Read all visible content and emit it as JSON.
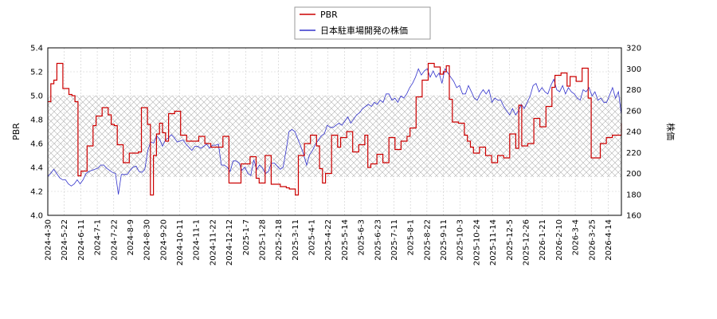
{
  "chart_data": {
    "type": "line",
    "legend": {
      "placement": "top-center",
      "entries": [
        {
          "name": "PBR",
          "color": "#cc0000"
        },
        {
          "name": "日本駐車場開発の株価",
          "color": "#3333cc"
        }
      ]
    },
    "y_left": {
      "label": "PBR",
      "range": [
        4.0,
        5.4
      ],
      "ticks": [
        "4.0",
        "4.2",
        "4.4",
        "4.6",
        "4.8",
        "5.0",
        "5.2",
        "5.4"
      ]
    },
    "y_right": {
      "label": "株価",
      "range": [
        160,
        320
      ],
      "ticks": [
        "160",
        "180",
        "200",
        "220",
        "240",
        "260",
        "280",
        "300",
        "320"
      ]
    },
    "shaded_band_pbr": [
      4.32,
      5.0
    ],
    "grid": true,
    "x_ticks": [
      "2024-4-30",
      "2024-5-22",
      "2024-6-11",
      "2024-7-1",
      "2024-7-22",
      "2024-8-9",
      "2024-8-30",
      "2024-9-20",
      "2024-10-11",
      "2024-11-1",
      "2024-11-22",
      "2024-12-12",
      "2025-1-7",
      "2025-1-28",
      "2025-2-18",
      "2025-3-11",
      "2025-4-1",
      "2025-4-22",
      "2025-5-14",
      "2025-6-3",
      "2025-6-23",
      "2025-7-11",
      "2025-8-1",
      "2025-8-22",
      "2025-9-11",
      "2025-10-3",
      "2025-10-24",
      "2025-11-14",
      "2025-12-5",
      "2025-12-26",
      "2026-1-21",
      "2026-2-10",
      "2026-3-4",
      "2026-3-25",
      "2026-4-14"
    ],
    "series": [
      {
        "name": "PBR",
        "axis": "left",
        "color": "#cc0000",
        "values": [
          4.95,
          5.1,
          5.13,
          5.27,
          5.27,
          5.06,
          5.06,
          5.01,
          5.0,
          4.95,
          4.33,
          4.37,
          4.37,
          4.58,
          4.58,
          4.75,
          4.83,
          4.83,
          4.9,
          4.9,
          4.84,
          4.76,
          4.75,
          4.59,
          4.59,
          4.44,
          4.44,
          4.52,
          4.52,
          4.52,
          4.53,
          4.9,
          4.9,
          4.76,
          4.17,
          4.5,
          4.68,
          4.77,
          4.69,
          4.62,
          4.85,
          4.85,
          4.87,
          4.87,
          4.67,
          4.67,
          4.62,
          4.62,
          4.62,
          4.62,
          4.66,
          4.66,
          4.6,
          4.6,
          4.57,
          4.57,
          4.57,
          4.57,
          4.66,
          4.66,
          4.27,
          4.27,
          4.27,
          4.27,
          4.43,
          4.43,
          4.43,
          4.49,
          4.49,
          4.31,
          4.27,
          4.27,
          4.5,
          4.5,
          4.26,
          4.26,
          4.26,
          4.24,
          4.24,
          4.23,
          4.22,
          4.22,
          4.17,
          4.5,
          4.5,
          4.6,
          4.6,
          4.67,
          4.67,
          4.58,
          4.39,
          4.27,
          4.35,
          4.35,
          4.67,
          4.67,
          4.57,
          4.65,
          4.65,
          4.7,
          4.7,
          4.53,
          4.53,
          4.59,
          4.59,
          4.67,
          4.4,
          4.43,
          4.43,
          4.51,
          4.51,
          4.44,
          4.44,
          4.65,
          4.65,
          4.55,
          4.55,
          4.62,
          4.62,
          4.66,
          4.73,
          4.73,
          4.99,
          4.99,
          5.13,
          5.13,
          5.27,
          5.27,
          5.24,
          5.24,
          5.18,
          5.2,
          5.25,
          4.97,
          4.78,
          4.78,
          4.77,
          4.77,
          4.67,
          4.62,
          4.57,
          4.52,
          4.52,
          4.57,
          4.57,
          4.5,
          4.5,
          4.44,
          4.44,
          4.5,
          4.5,
          4.48,
          4.48,
          4.68,
          4.68,
          4.56,
          4.92,
          4.58,
          4.58,
          4.6,
          4.6,
          4.81,
          4.81,
          4.74,
          4.74,
          4.91,
          4.91,
          5.07,
          5.17,
          5.17,
          5.19,
          5.19,
          5.08,
          5.16,
          5.16,
          5.12,
          5.12,
          5.23,
          5.23,
          4.98,
          4.48,
          4.48,
          4.48,
          4.6,
          4.6,
          4.65,
          4.65,
          4.67,
          4.67,
          4.67,
          4.77
        ]
      },
      {
        "name": "日本駐車場開発の株価",
        "axis": "right",
        "color": "#3333cc",
        "values": [
          197,
          200,
          204,
          200,
          196,
          194,
          194,
          190,
          188,
          190,
          194,
          190,
          194,
          200,
          202,
          203,
          204,
          205,
          208,
          208,
          205,
          203,
          201,
          200,
          180,
          199,
          199,
          199,
          203,
          206,
          207,
          202,
          201,
          204,
          222,
          230,
          229,
          236,
          233,
          226,
          232,
          234,
          237,
          234,
          230,
          231,
          232,
          228,
          225,
          222,
          226,
          226,
          224,
          226,
          228,
          224,
          227,
          227,
          228,
          208,
          208,
          206,
          202,
          212,
          212,
          210,
          203,
          206,
          200,
          198,
          213,
          204,
          208,
          205,
          200,
          202,
          210,
          210,
          207,
          204,
          206,
          222,
          240,
          242,
          240,
          233,
          226,
          218,
          208,
          218,
          222,
          228,
          232,
          236,
          238,
          246,
          244,
          244,
          246,
          248,
          246,
          250,
          254,
          248,
          252,
          256,
          258,
          262,
          264,
          266,
          264,
          268,
          266,
          270,
          268,
          276,
          276,
          270,
          272,
          268,
          274,
          272,
          276,
          282,
          286,
          292,
          300,
          294,
          298,
          300,
          292,
          298,
          292,
          296,
          286,
          300,
          296,
          292,
          288,
          282,
          284,
          276,
          276,
          284,
          278,
          272,
          270,
          276,
          280,
          276,
          280,
          268,
          272,
          270,
          270,
          264,
          260,
          256,
          262,
          256,
          260,
          266,
          262,
          268,
          274,
          284,
          286,
          278,
          282,
          278,
          276,
          284,
          290,
          280,
          278,
          284,
          276,
          282,
          278,
          276,
          272,
          270,
          280,
          278,
          282,
          274,
          278,
          270,
          272,
          268,
          268,
          275,
          282,
          272,
          278,
          256
        ]
      }
    ]
  }
}
